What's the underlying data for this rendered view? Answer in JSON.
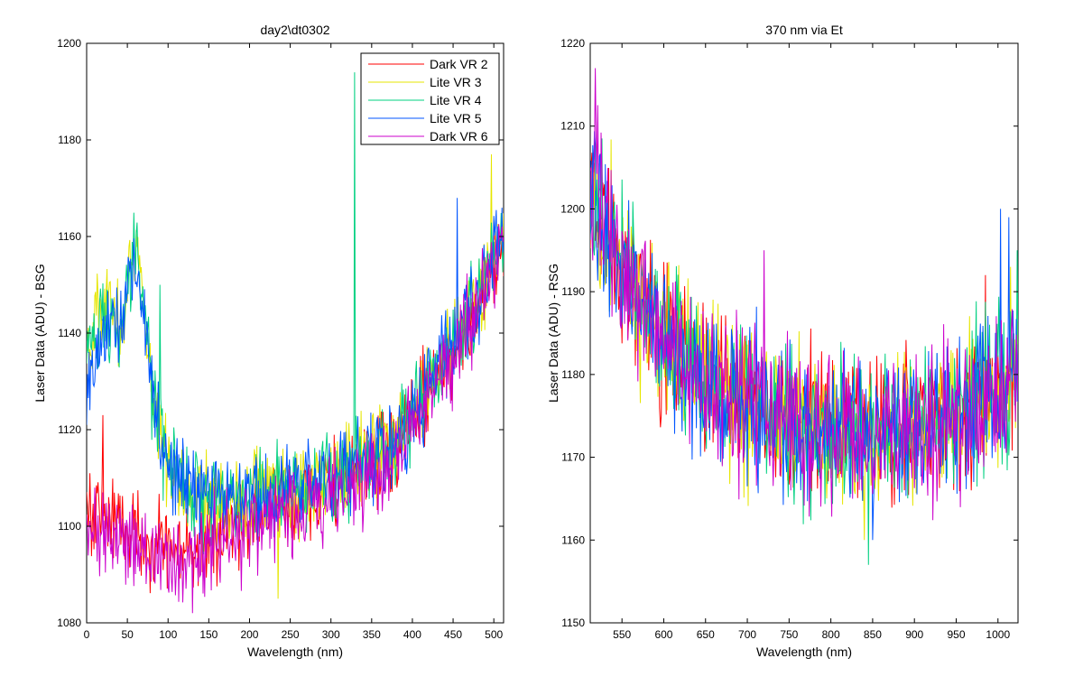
{
  "chart_data": [
    {
      "type": "line",
      "title": "day2\\dt0302",
      "xlabel": "Wavelength (nm)",
      "ylabel": "Laser Data (ADU) - BSG",
      "xlim": [
        0,
        512
      ],
      "ylim": [
        1080,
        1200
      ],
      "xticks": [
        0,
        50,
        100,
        150,
        200,
        250,
        300,
        350,
        400,
        450,
        500
      ],
      "yticks": [
        1080,
        1100,
        1120,
        1140,
        1160,
        1180,
        1200
      ],
      "grid": false,
      "legend_position": "top-right",
      "x_key": [
        0,
        10,
        20,
        30,
        40,
        50,
        60,
        70,
        80,
        90,
        100,
        110,
        120,
        130,
        140,
        150,
        160,
        170,
        180,
        190,
        200,
        210,
        220,
        230,
        240,
        250,
        260,
        270,
        280,
        290,
        300,
        310,
        320,
        330,
        340,
        350,
        360,
        370,
        380,
        390,
        400,
        410,
        420,
        430,
        440,
        450,
        460,
        470,
        480,
        490,
        500,
        512
      ],
      "series": [
        {
          "name": "Dark VR 2",
          "color": "#ff0000",
          "values": [
            1104,
            1103,
            1102,
            1102,
            1101,
            1100,
            1099,
            1098,
            1097,
            1096,
            1096,
            1095,
            1095,
            1095,
            1096,
            1097,
            1098,
            1099,
            1100,
            1101,
            1102,
            1103,
            1104,
            1104,
            1104,
            1105,
            1105,
            1106,
            1106,
            1107,
            1108,
            1109,
            1110,
            1111,
            1112,
            1113,
            1114,
            1115,
            1117,
            1119,
            1122,
            1125,
            1128,
            1130,
            1133,
            1136,
            1139,
            1142,
            1146,
            1150,
            1154,
            1158
          ],
          "spikes": [
            [
              20,
              1123
            ]
          ]
        },
        {
          "name": "Lite VR 3",
          "color": "#e6e600",
          "values": [
            1138,
            1143,
            1147,
            1145,
            1140,
            1150,
            1158,
            1145,
            1130,
            1120,
            1113,
            1110,
            1108,
            1107,
            1106,
            1106,
            1106,
            1106,
            1106,
            1106,
            1106,
            1107,
            1107,
            1107,
            1107,
            1108,
            1108,
            1109,
            1109,
            1110,
            1110,
            1111,
            1112,
            1113,
            1114,
            1115,
            1116,
            1117,
            1119,
            1121,
            1123,
            1126,
            1129,
            1132,
            1135,
            1138,
            1141,
            1144,
            1148,
            1152,
            1156,
            1160
          ],
          "spikes": [
            [
              235,
              1085
            ],
            [
              497,
              1177
            ]
          ]
        },
        {
          "name": "Lite VR 4",
          "color": "#00d080",
          "values": [
            1136,
            1140,
            1144,
            1143,
            1138,
            1148,
            1157,
            1144,
            1129,
            1119,
            1112,
            1110,
            1108,
            1107,
            1107,
            1107,
            1107,
            1106,
            1106,
            1106,
            1106,
            1107,
            1107,
            1107,
            1108,
            1108,
            1108,
            1109,
            1109,
            1110,
            1110,
            1111,
            1112,
            1113,
            1114,
            1115,
            1116,
            1117,
            1119,
            1121,
            1123,
            1126,
            1129,
            1132,
            1135,
            1138,
            1141,
            1144,
            1148,
            1152,
            1156,
            1160
          ],
          "spikes": [
            [
              329,
              1194
            ],
            [
              90,
              1150
            ]
          ]
        },
        {
          "name": "Lite VR 5",
          "color": "#0055ff",
          "values": [
            1130,
            1132,
            1140,
            1144,
            1140,
            1150,
            1155,
            1145,
            1130,
            1120,
            1113,
            1111,
            1109,
            1108,
            1107,
            1107,
            1107,
            1106,
            1106,
            1106,
            1106,
            1107,
            1107,
            1107,
            1108,
            1108,
            1108,
            1109,
            1109,
            1110,
            1110,
            1111,
            1112,
            1113,
            1114,
            1115,
            1116,
            1117,
            1119,
            1121,
            1123,
            1126,
            1129,
            1132,
            1135,
            1138,
            1141,
            1144,
            1148,
            1152,
            1156,
            1160
          ],
          "spikes": [
            [
              0,
              1121
            ],
            [
              455,
              1168
            ]
          ]
        },
        {
          "name": "Dark VR 6",
          "color": "#cc00cc",
          "values": [
            1101,
            1100,
            1099,
            1098,
            1097,
            1096,
            1095,
            1094,
            1093,
            1092,
            1092,
            1092,
            1092,
            1093,
            1094,
            1095,
            1096,
            1097,
            1098,
            1099,
            1100,
            1101,
            1102,
            1102,
            1103,
            1103,
            1104,
            1104,
            1105,
            1105,
            1106,
            1107,
            1108,
            1109,
            1110,
            1111,
            1112,
            1113,
            1115,
            1117,
            1120,
            1123,
            1126,
            1129,
            1132,
            1135,
            1138,
            1142,
            1146,
            1150,
            1154,
            1158
          ],
          "spikes": [
            [
              130,
              1082
            ]
          ]
        }
      ]
    },
    {
      "type": "line",
      "title": "370 nm via Et",
      "xlabel": "Wavelength (nm)",
      "ylabel": "Laser Data (ADU) - RSG",
      "xlim": [
        512,
        1024
      ],
      "ylim": [
        1150,
        1220
      ],
      "xticks": [
        550,
        600,
        650,
        700,
        750,
        800,
        850,
        900,
        950,
        1000
      ],
      "yticks": [
        1150,
        1160,
        1170,
        1180,
        1190,
        1200,
        1210,
        1220
      ],
      "grid": false,
      "x_key": [
        512,
        530,
        550,
        570,
        590,
        610,
        630,
        650,
        670,
        690,
        710,
        730,
        750,
        770,
        790,
        810,
        830,
        850,
        870,
        890,
        910,
        930,
        950,
        970,
        990,
        1010,
        1024
      ],
      "series": [
        {
          "name": "",
          "color": "#ff0000",
          "values": [
            1203,
            1199,
            1193,
            1189,
            1186,
            1183,
            1181,
            1179,
            1178,
            1177,
            1176,
            1175,
            1174,
            1174,
            1173,
            1173,
            1173,
            1173,
            1173,
            1174,
            1174,
            1175,
            1175,
            1176,
            1177,
            1179,
            1181
          ],
          "spikes": [
            [
              985,
              1192
            ]
          ]
        },
        {
          "name": "",
          "color": "#e6e600",
          "values": [
            1202,
            1198,
            1193,
            1189,
            1186,
            1183,
            1181,
            1179,
            1178,
            1177,
            1176,
            1175,
            1174,
            1174,
            1173,
            1173,
            1173,
            1173,
            1173,
            1174,
            1174,
            1175,
            1175,
            1176,
            1177,
            1179,
            1181
          ],
          "spikes": [
            [
              1015,
              1193
            ],
            [
              840,
              1160
            ]
          ]
        },
        {
          "name": "",
          "color": "#00d080",
          "values": [
            1201,
            1198,
            1193,
            1189,
            1186,
            1183,
            1181,
            1179,
            1178,
            1177,
            1176,
            1175,
            1174,
            1174,
            1173,
            1173,
            1173,
            1173,
            1173,
            1174,
            1174,
            1175,
            1175,
            1176,
            1177,
            1179,
            1181
          ],
          "spikes": [
            [
              845,
              1157
            ],
            [
              1023,
              1195
            ]
          ]
        },
        {
          "name": "",
          "color": "#0055ff",
          "values": [
            1203,
            1199,
            1193,
            1189,
            1186,
            1183,
            1181,
            1179,
            1178,
            1177,
            1176,
            1175,
            1174,
            1174,
            1173,
            1173,
            1173,
            1173,
            1173,
            1174,
            1174,
            1175,
            1175,
            1176,
            1177,
            1179,
            1181
          ],
          "spikes": [
            [
              1003,
              1200
            ],
            [
              1013,
              1199
            ],
            [
              850,
              1160
            ]
          ]
        },
        {
          "name": "",
          "color": "#cc00cc",
          "values": [
            1205,
            1200,
            1194,
            1189,
            1186,
            1183,
            1181,
            1179,
            1178,
            1177,
            1176,
            1175,
            1174,
            1174,
            1173,
            1173,
            1173,
            1173,
            1173,
            1174,
            1174,
            1175,
            1175,
            1176,
            1177,
            1179,
            1181
          ],
          "spikes": [
            [
              518,
              1217
            ],
            [
              720,
              1195
            ]
          ]
        }
      ]
    }
  ]
}
